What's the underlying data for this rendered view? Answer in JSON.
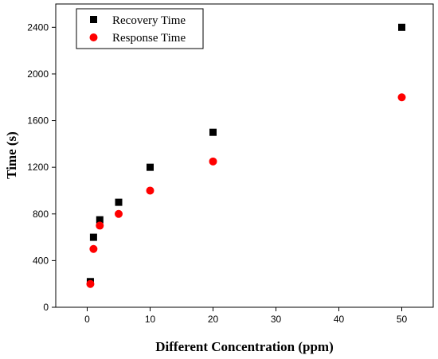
{
  "chart_data": {
    "type": "scatter",
    "xlabel": "Different Concentration (ppm)",
    "ylabel": "Time (s)",
    "xlim": [
      -5,
      55
    ],
    "ylim": [
      0,
      2600
    ],
    "x_ticks": [
      0,
      10,
      20,
      30,
      40,
      50
    ],
    "y_ticks": [
      0,
      400,
      800,
      1200,
      1600,
      2000,
      2400
    ],
    "grid": false,
    "legend_position": "top-left",
    "series": [
      {
        "name": "Recovery Time",
        "marker": "square",
        "color": "#000000",
        "points": [
          {
            "x": 0.5,
            "y": 220
          },
          {
            "x": 1,
            "y": 600
          },
          {
            "x": 2,
            "y": 750
          },
          {
            "x": 5,
            "y": 900
          },
          {
            "x": 10,
            "y": 1200
          },
          {
            "x": 20,
            "y": 1500
          },
          {
            "x": 50,
            "y": 2400
          }
        ]
      },
      {
        "name": "Response Time",
        "marker": "circle",
        "color": "#ff0000",
        "points": [
          {
            "x": 0.5,
            "y": 200
          },
          {
            "x": 1,
            "y": 500
          },
          {
            "x": 2,
            "y": 700
          },
          {
            "x": 5,
            "y": 800
          },
          {
            "x": 10,
            "y": 1000
          },
          {
            "x": 20,
            "y": 1250
          },
          {
            "x": 50,
            "y": 1800
          }
        ]
      }
    ]
  }
}
